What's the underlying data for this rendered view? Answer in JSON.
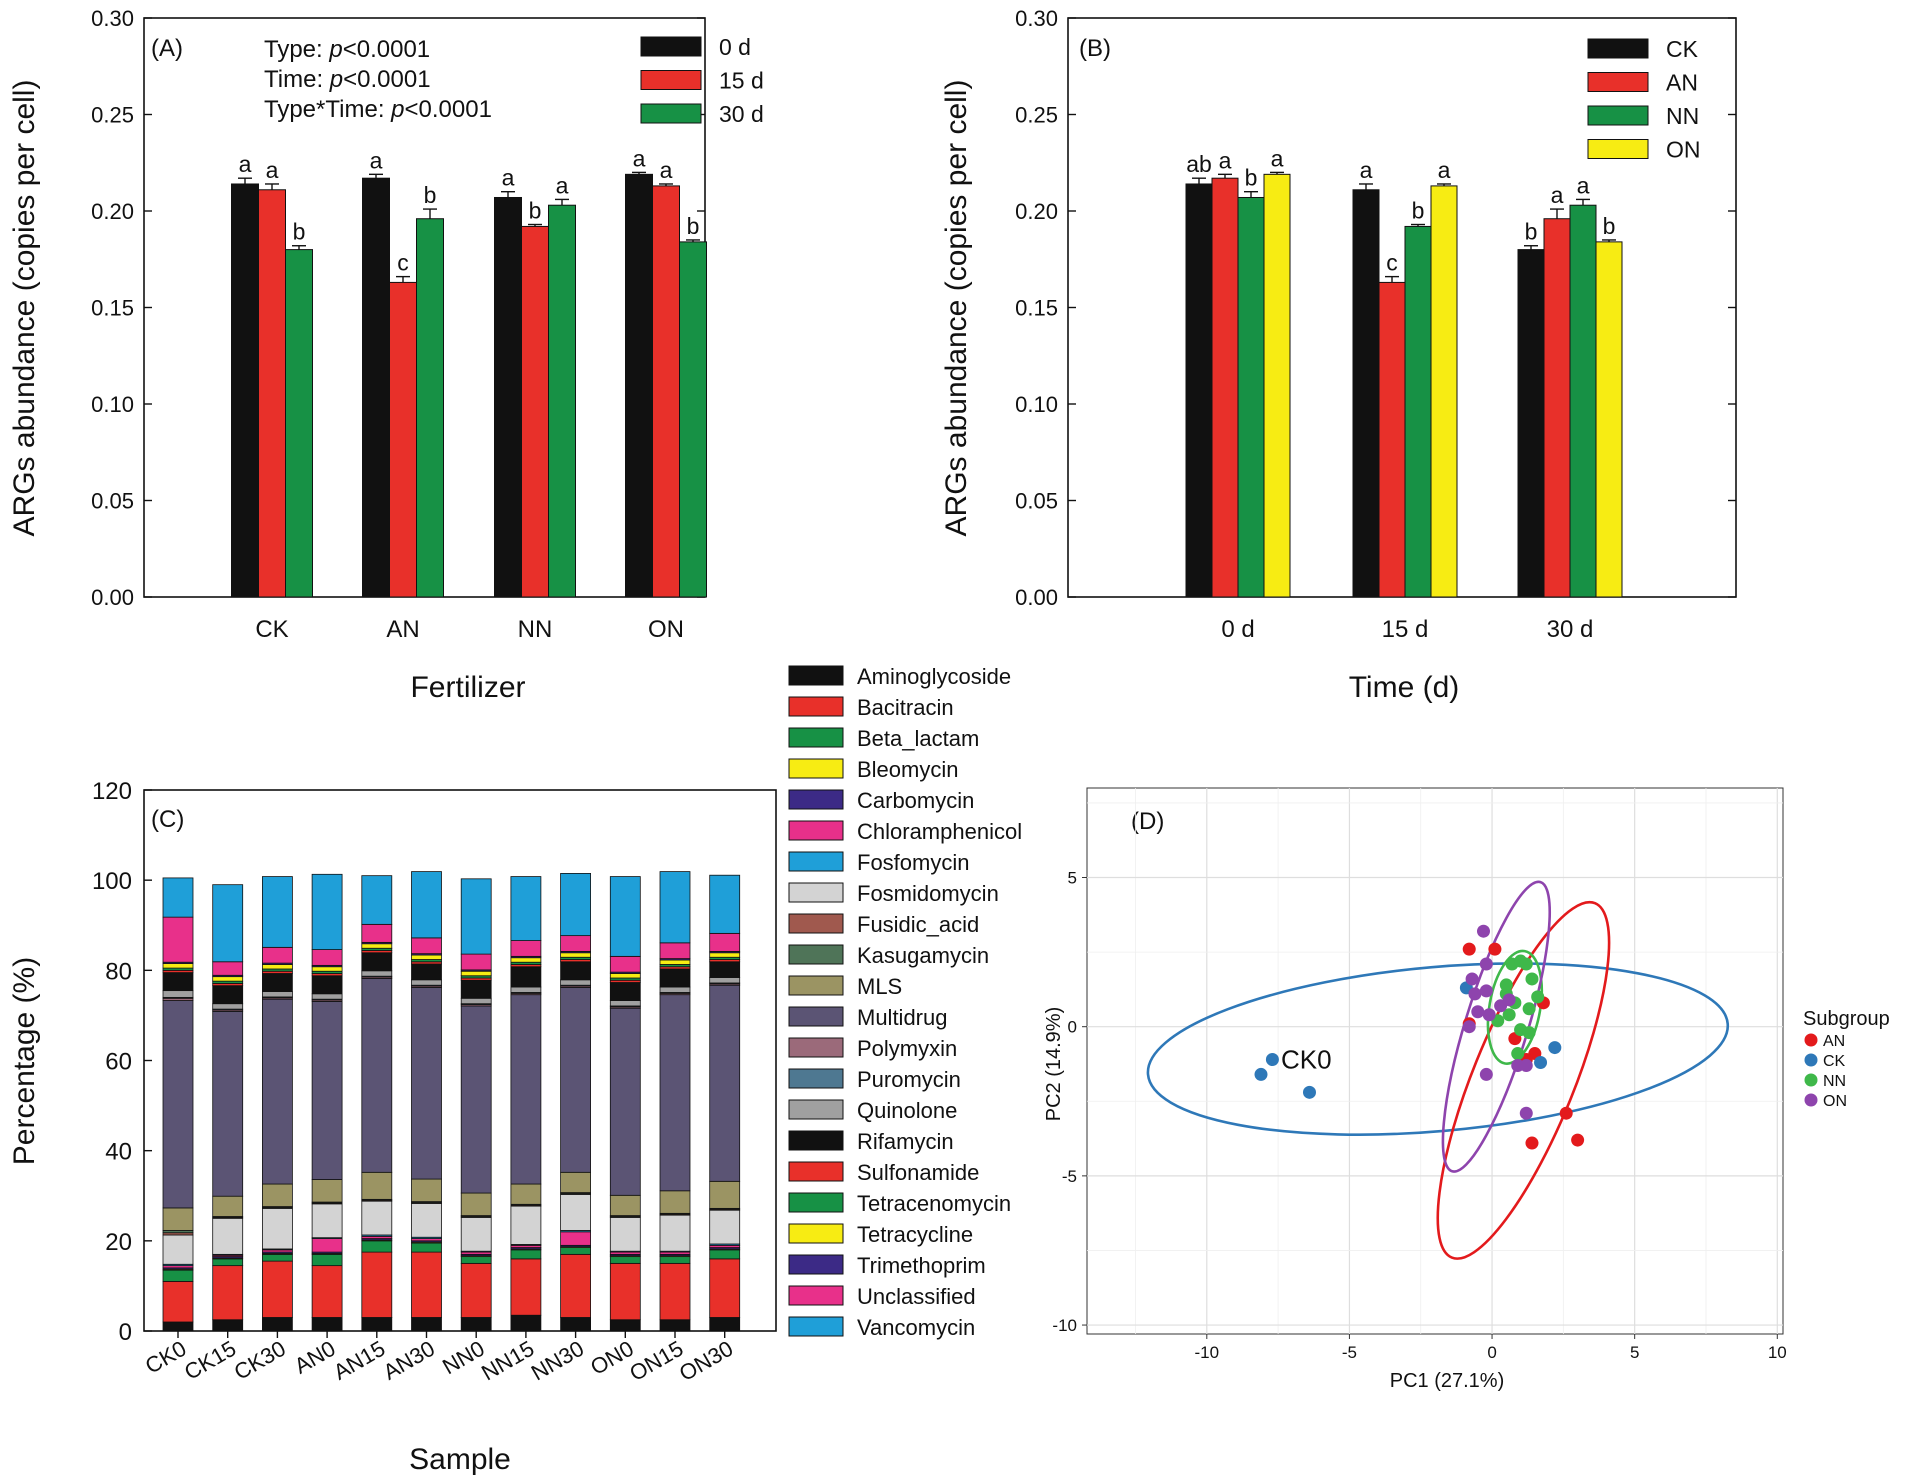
{
  "colors": {
    "black": "#111111",
    "red": "#e8302a",
    "green": "#179145",
    "yellow": "#f7ec13",
    "subgroup": {
      "AN": "#e31a1c",
      "CK": "#2e78b8",
      "NN": "#3fb84a",
      "ON": "#8e44ad"
    },
    "stack": [
      "#111111",
      "#e8302a",
      "#179145",
      "#f7ec13",
      "#3c2a86",
      "#e8308a",
      "#1f9fd8",
      "#d3d3d3",
      "#a0594e",
      "#4f7458",
      "#9b9463",
      "#5b5474",
      "#9b6a7a",
      "#4e7891",
      "#a0a0a0",
      "#111111",
      "#e8302a",
      "#179145",
      "#f7ec13",
      "#3c2a86",
      "#e8308a",
      "#1f9fd8"
    ]
  },
  "chart_data": [
    {
      "panel": "(A)",
      "type": "bar",
      "xlabel": "Fertilizer",
      "ylabel": "ARGs abundance (copies per cell)",
      "ylim": [
        0,
        0.3
      ],
      "yticks": [
        "0.00",
        "0.05",
        "0.10",
        "0.15",
        "0.20",
        "0.25",
        "0.30"
      ],
      "categories": [
        "CK",
        "AN",
        "NN",
        "ON"
      ],
      "stats": {
        "type": {
          "label": "Type: ",
          "p": "p",
          "value": "<0.0001"
        },
        "time": {
          "label": "Time: ",
          "p": "p",
          "value": "<0.0001"
        },
        "interaction": {
          "label": "Type*Time: ",
          "p": "p",
          "value": "<0.0001"
        }
      },
      "series": [
        {
          "name": "0 d",
          "color": "#111111",
          "values": [
            0.214,
            0.217,
            0.207,
            0.219
          ],
          "errors": [
            0.003,
            0.002,
            0.003,
            0.001
          ],
          "letters": [
            "a",
            "a",
            "a",
            "a"
          ]
        },
        {
          "name": "15 d",
          "color": "#e8302a",
          "values": [
            0.211,
            0.163,
            0.192,
            0.213
          ],
          "errors": [
            0.003,
            0.003,
            0.001,
            0.001
          ],
          "letters": [
            "a",
            "c",
            "b",
            "a"
          ]
        },
        {
          "name": "30 d",
          "color": "#179145",
          "values": [
            0.18,
            0.196,
            0.203,
            0.184
          ],
          "errors": [
            0.002,
            0.005,
            0.003,
            0.001
          ],
          "letters": [
            "b",
            "b",
            "a",
            "b"
          ]
        }
      ]
    },
    {
      "panel": "(B)",
      "type": "bar",
      "xlabel": "Time (d)",
      "ylabel": "ARGs abundance (copies per cell)",
      "ylim": [
        0,
        0.3
      ],
      "yticks": [
        "0.00",
        "0.05",
        "0.10",
        "0.15",
        "0.20",
        "0.25",
        "0.30"
      ],
      "categories": [
        "0 d",
        "15 d",
        "30 d"
      ],
      "series": [
        {
          "name": "CK",
          "color": "#111111",
          "values": [
            0.214,
            0.211,
            0.18
          ],
          "errors": [
            0.003,
            0.003,
            0.002
          ],
          "letters": [
            "ab",
            "a",
            "b"
          ]
        },
        {
          "name": "AN",
          "color": "#e8302a",
          "values": [
            0.217,
            0.163,
            0.196
          ],
          "errors": [
            0.002,
            0.003,
            0.005
          ],
          "letters": [
            "a",
            "c",
            "a"
          ]
        },
        {
          "name": "NN",
          "color": "#179145",
          "values": [
            0.207,
            0.192,
            0.203
          ],
          "errors": [
            0.003,
            0.001,
            0.003
          ],
          "letters": [
            "b",
            "b",
            "a"
          ]
        },
        {
          "name": "ON",
          "color": "#f7ec13",
          "values": [
            0.219,
            0.213,
            0.184
          ],
          "errors": [
            0.001,
            0.001,
            0.001
          ],
          "letters": [
            "a",
            "a",
            "b"
          ]
        }
      ]
    },
    {
      "panel": "(C)",
      "type": "bar",
      "stacked": true,
      "xlabel": "Sample",
      "ylabel": "Percentage (%)",
      "ylim": [
        0,
        120
      ],
      "yticks": [
        "0",
        "20",
        "40",
        "60",
        "80",
        "100",
        "120"
      ],
      "categories": [
        "CK0",
        "CK15",
        "CK30",
        "AN0",
        "AN15",
        "AN30",
        "NN0",
        "NN15",
        "NN30",
        "ON0",
        "ON15",
        "ON30"
      ],
      "series": [
        {
          "name": "Aminoglycoside",
          "values": [
            2.0,
            2.5,
            3.0,
            3.0,
            3.0,
            3.0,
            3.0,
            3.5,
            3.0,
            2.5,
            2.5,
            3.0
          ]
        },
        {
          "name": "Bacitracin",
          "values": [
            9.0,
            12.0,
            12.5,
            11.5,
            14.5,
            14.5,
            12.0,
            12.5,
            14.0,
            12.5,
            12.5,
            13.0
          ]
        },
        {
          "name": "Beta_lactam",
          "values": [
            2.5,
            1.5,
            1.5,
            2.5,
            2.5,
            2.0,
            1.5,
            2.0,
            1.5,
            1.5,
            1.5,
            2.0
          ]
        },
        {
          "name": "Bleomycin",
          "values": [
            0.2,
            0.2,
            0.2,
            0.2,
            0.2,
            0.2,
            0.2,
            0.2,
            0.2,
            0.2,
            0.2,
            0.2
          ]
        },
        {
          "name": "Carbomycin",
          "values": [
            0.3,
            0.3,
            0.3,
            0.3,
            0.3,
            0.3,
            0.3,
            0.3,
            0.3,
            0.3,
            0.3,
            0.3
          ]
        },
        {
          "name": "Chloramphenicol",
          "values": [
            0.5,
            0.3,
            0.5,
            3.0,
            0.5,
            0.5,
            0.5,
            0.5,
            3.0,
            0.5,
            0.5,
            0.5
          ]
        },
        {
          "name": "Fosfomycin",
          "values": [
            0.3,
            0.2,
            0.2,
            0.2,
            0.3,
            0.3,
            0.2,
            0.2,
            0.3,
            0.2,
            0.2,
            0.3
          ]
        },
        {
          "name": "Fosmidomycin",
          "values": [
            6.5,
            8.0,
            9.0,
            7.5,
            7.5,
            7.5,
            7.5,
            8.5,
            8.0,
            7.5,
            8.0,
            7.5
          ]
        },
        {
          "name": "Fusidic_acid",
          "values": [
            0.5,
            0.2,
            0.2,
            0.2,
            0.2,
            0.2,
            0.2,
            0.2,
            0.2,
            0.2,
            0.2,
            0.2
          ]
        },
        {
          "name": "Kasugamycin",
          "values": [
            0.5,
            0.2,
            0.2,
            0.2,
            0.2,
            0.2,
            0.2,
            0.2,
            0.2,
            0.2,
            0.2,
            0.2
          ]
        },
        {
          "name": "MLS",
          "values": [
            5.0,
            4.5,
            5.0,
            5.0,
            6.0,
            5.0,
            5.0,
            4.5,
            4.5,
            4.5,
            5.0,
            6.0
          ]
        },
        {
          "name": "Multidrug",
          "values": [
            46.0,
            41.0,
            41.0,
            39.5,
            43.0,
            42.5,
            41.5,
            42.0,
            41.0,
            41.5,
            43.5,
            43.5
          ]
        },
        {
          "name": "Polymyxin",
          "values": [
            0.5,
            0.3,
            0.3,
            0.3,
            0.3,
            0.3,
            0.3,
            0.3,
            0.3,
            0.3,
            0.3,
            0.3
          ]
        },
        {
          "name": "Puromycin",
          "values": [
            0.2,
            0.2,
            0.2,
            0.2,
            0.2,
            0.2,
            0.2,
            0.2,
            0.2,
            0.2,
            0.2,
            0.2
          ]
        },
        {
          "name": "Quinolone",
          "values": [
            1.5,
            1.2,
            1.2,
            1.2,
            1.2,
            1.2,
            1.2,
            1.2,
            1.2,
            1.2,
            1.2,
            1.2
          ]
        },
        {
          "name": "Rifamycin",
          "values": [
            4.0,
            4.0,
            4.0,
            4.0,
            4.0,
            3.5,
            4.0,
            4.5,
            4.0,
            4.0,
            4.0,
            3.5
          ]
        },
        {
          "name": "Sulfonamide",
          "values": [
            0.5,
            0.5,
            0.5,
            0.5,
            0.5,
            0.5,
            0.5,
            0.5,
            0.5,
            0.5,
            0.5,
            0.5
          ]
        },
        {
          "name": "Tetracenomycin",
          "values": [
            0.5,
            0.5,
            0.5,
            0.5,
            0.5,
            0.5,
            0.5,
            0.5,
            0.5,
            0.5,
            0.5,
            0.5
          ]
        },
        {
          "name": "Tetracycline",
          "values": [
            1.0,
            1.0,
            1.0,
            1.0,
            1.0,
            1.0,
            1.0,
            1.0,
            1.0,
            1.0,
            1.0,
            1.0
          ]
        },
        {
          "name": "Trimethoprim",
          "values": [
            0.3,
            0.3,
            0.3,
            0.3,
            0.3,
            0.3,
            0.3,
            0.3,
            0.3,
            0.3,
            0.3,
            0.3
          ]
        },
        {
          "name": "Unclassified",
          "values": [
            10.0,
            3.0,
            3.5,
            3.5,
            4.0,
            3.5,
            3.5,
            3.5,
            3.5,
            3.5,
            3.5,
            4.0
          ]
        },
        {
          "name": "Vancomycin",
          "values": [
            8.7,
            17.1,
            15.7,
            16.7,
            10.8,
            14.7,
            16.7,
            14.2,
            13.8,
            17.7,
            15.8,
            12.9
          ]
        }
      ]
    },
    {
      "panel": "(D)",
      "type": "scatter",
      "xlabel": "PC1 (27.1%)",
      "ylabel": "PC2 (14.9%)",
      "xlim": [
        -14.2,
        10.2
      ],
      "ylim": [
        -10.3,
        8.0
      ],
      "xticks": [
        -10,
        -5,
        0,
        5,
        10
      ],
      "yticks": [
        -10,
        -5,
        0,
        5
      ],
      "xtick_labels": [
        "-10",
        "-5",
        "0",
        "5",
        "10"
      ],
      "ytick_labels": [
        "-10",
        "-5",
        "0",
        "5"
      ],
      "grid": true,
      "legend_title": "Subgroup",
      "annotation": {
        "text": "CK0",
        "x": -7.4,
        "y": -1.1
      },
      "series": [
        {
          "name": "AN",
          "points": [
            [
              -0.8,
              2.6
            ],
            [
              0.1,
              2.6
            ],
            [
              1.8,
              0.8
            ],
            [
              0.8,
              -0.4
            ],
            [
              1.5,
              -0.9
            ],
            [
              -0.8,
              0.1
            ],
            [
              2.6,
              -2.9
            ],
            [
              3.0,
              -3.8
            ],
            [
              1.4,
              -3.9
            ],
            [
              1.2,
              -1.1
            ]
          ]
        },
        {
          "name": "CK",
          "points": [
            [
              -8.1,
              -1.6
            ],
            [
              -7.7,
              -1.1
            ],
            [
              -6.4,
              -2.2
            ],
            [
              2.2,
              -0.7
            ],
            [
              1.7,
              -1.2
            ],
            [
              -0.9,
              1.3
            ]
          ]
        },
        {
          "name": "NN",
          "points": [
            [
              0.7,
              2.1
            ],
            [
              1.0,
              2.2
            ],
            [
              1.2,
              2.1
            ],
            [
              1.4,
              1.6
            ],
            [
              0.5,
              1.1
            ],
            [
              0.8,
              0.8
            ],
            [
              1.3,
              0.6
            ],
            [
              0.2,
              0.2
            ],
            [
              0.6,
              0.4
            ],
            [
              1.0,
              -0.1
            ],
            [
              1.3,
              -0.2
            ],
            [
              0.9,
              -0.9
            ],
            [
              0.5,
              1.4
            ],
            [
              1.6,
              1.0
            ]
          ]
        },
        {
          "name": "ON",
          "points": [
            [
              -0.7,
              1.6
            ],
            [
              -0.3,
              3.2
            ],
            [
              -0.2,
              2.1
            ],
            [
              -0.2,
              1.2
            ],
            [
              0.3,
              0.7
            ],
            [
              -0.1,
              0.4
            ],
            [
              -0.5,
              0.5
            ],
            [
              -0.8,
              0.0
            ],
            [
              0.9,
              -1.3
            ],
            [
              1.2,
              -1.3
            ],
            [
              -0.2,
              -1.6
            ],
            [
              1.2,
              -2.9
            ],
            [
              -0.6,
              1.1
            ],
            [
              0.6,
              0.9
            ]
          ]
        }
      ],
      "ellipses": [
        {
          "name": "CK",
          "cx": -1.9,
          "cy": -0.75,
          "rx": 10.2,
          "ry": 2.75,
          "angle_deg": -5
        },
        {
          "name": "AN",
          "cx": 1.1,
          "cy": -1.8,
          "rx": 6.7,
          "ry": 1.7,
          "angle_deg": -68
        },
        {
          "name": "NN",
          "cx": 0.8,
          "cy": 0.65,
          "rx": 2.0,
          "ry": 0.85,
          "angle_deg": -80
        },
        {
          "name": "ON",
          "cx": 0.15,
          "cy": 0.0,
          "rx": 5.3,
          "ry": 1.05,
          "angle_deg": -73
        }
      ]
    }
  ]
}
